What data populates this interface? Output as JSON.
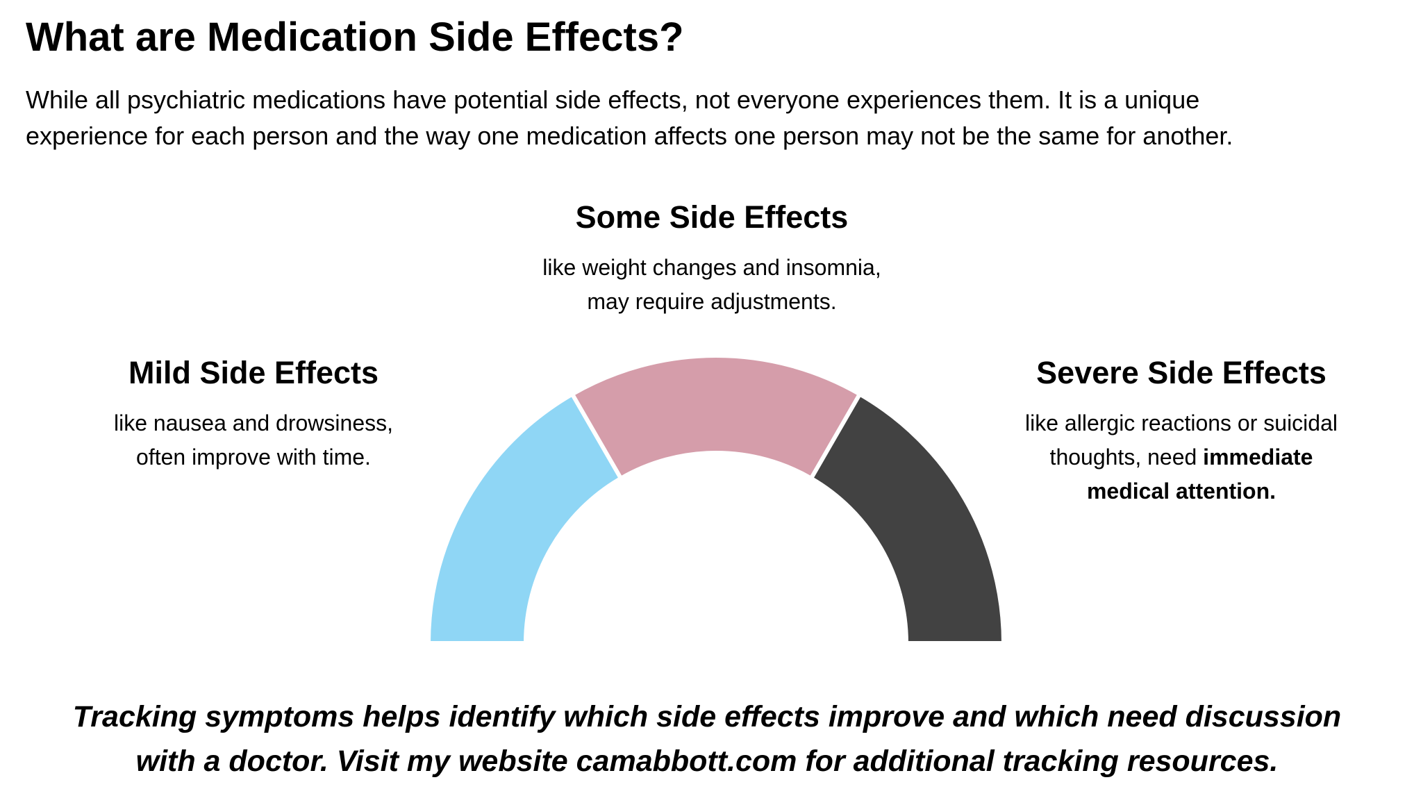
{
  "title": "What are Medication Side Effects?",
  "intro": {
    "lines": [
      "While all psychiatric medications have potential side effects, not everyone experiences them. It is a unique",
      "experience for each person and the way one medication affects one person may not be the same for another."
    ]
  },
  "sections": [
    {
      "heading": "Mild Side Effects",
      "lines": [
        "like nausea and drowsiness,",
        "often improve with time."
      ]
    },
    {
      "heading": "Some Side Effects",
      "lines": [
        "like weight changes and insomnia,",
        "may require adjustments."
      ]
    },
    {
      "heading": "Severe Side Effects",
      "lines": [
        "like allergic reactions or suicidal",
        "thoughts, need"
      ],
      "emphasis": [
        "immediate",
        "medical attention."
      ]
    }
  ],
  "footer": {
    "lines": [
      "Tracking symptoms helps identify which side effects improve and which need discussion",
      "with a doctor. Visit my website camabbott.com for additional tracking resources."
    ]
  }
}
